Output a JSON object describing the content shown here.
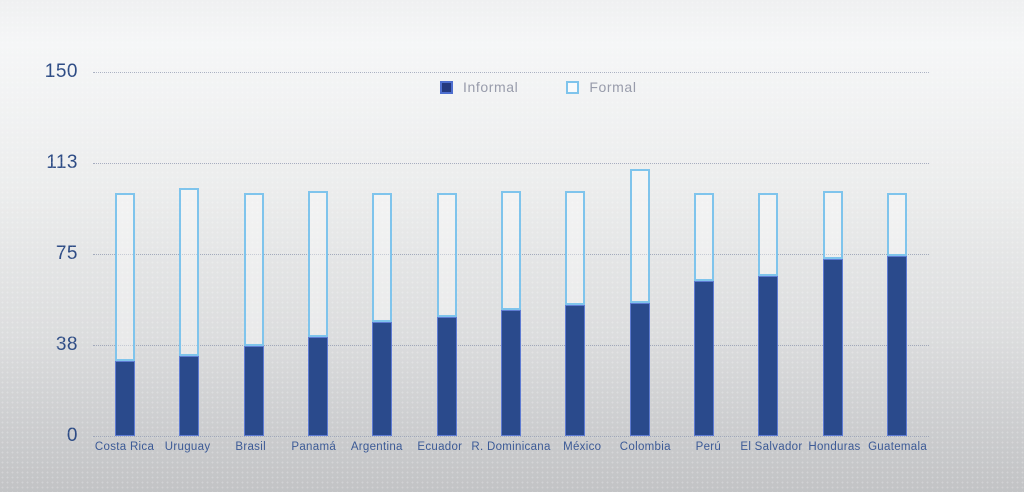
{
  "chart_data": {
    "type": "bar",
    "stacked": true,
    "title": "",
    "xlabel": "",
    "ylabel": "",
    "ylim": [
      0,
      150
    ],
    "yticks": [
      {
        "value": 0,
        "label": "0"
      },
      {
        "value": 37.5,
        "label": "38"
      },
      {
        "value": 75,
        "label": "75"
      },
      {
        "value": 112.5,
        "label": "113"
      },
      {
        "value": 150,
        "label": "150"
      }
    ],
    "grid": "horizontal-dotted",
    "legend_position": "top-center",
    "categories": [
      "Costa Rica",
      "Uruguay",
      "Brasil",
      "Panamá",
      "Argentina",
      "Ecuador",
      "R. Dominicana",
      "México",
      "Colombia",
      "Perú",
      "El Salvador",
      "Honduras",
      "Guatemala"
    ],
    "series": [
      {
        "name": "Informal",
        "fill_color": "#2a4a8c",
        "border_color": "#5e7bd2",
        "values": [
          31,
          33,
          37,
          41,
          47,
          49,
          52,
          54,
          55,
          64,
          66,
          73,
          74
        ]
      },
      {
        "name": "Formal",
        "fill_color": "transparent",
        "border_color": "#7fc4ec",
        "values": [
          69,
          69,
          63,
          60,
          53,
          51,
          49,
          47,
          55,
          36,
          34,
          28,
          26
        ]
      }
    ]
  },
  "colors": {
    "informal_fill": "#2a4a8c",
    "informal_border": "#5e7bd2",
    "formal_border": "#7fc4ec",
    "gridline": "#99a1b6",
    "ytick_text": "#2e4c85",
    "xlabel_text": "#3c5a96",
    "legend_text": "#989cab",
    "background_top": "#f5f6f7",
    "background_bottom": "#c2c3c5"
  },
  "legend": {
    "informal_label": "Informal",
    "formal_label": "Formal"
  }
}
